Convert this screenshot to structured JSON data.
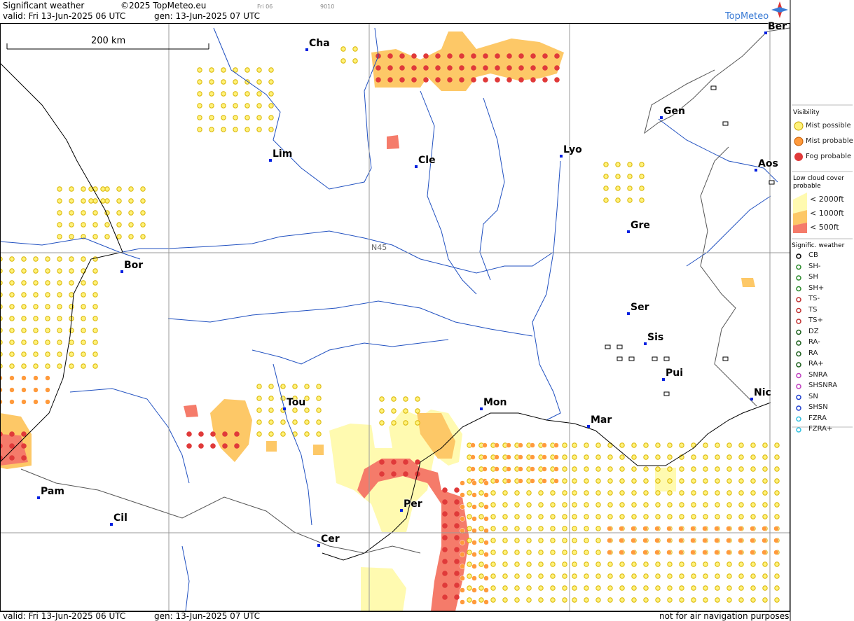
{
  "header": {
    "title": "Significant weather",
    "copyright": "©2025 TopMeteo.eu",
    "run": "Fri 06",
    "code": "9010",
    "valid": "valid:  Fri  13-Jun-2025  06 UTC",
    "gen": "gen: 13-Jun-2025  07 UTC"
  },
  "logo": "TopMeteo",
  "map": {
    "scale": "200 km",
    "latitude_label": "N45",
    "cities": [
      "Cha",
      "Ber",
      "Gen",
      "Lim",
      "Cle",
      "Lyo",
      "Aos",
      "Gre",
      "Bor",
      "Ser",
      "Sis",
      "Pui",
      "Tou",
      "Mon",
      "Mar",
      "Nic",
      "Pam",
      "Per",
      "Cil",
      "Cer"
    ]
  },
  "legend": {
    "visibility": {
      "title": "Visibility",
      "items": [
        "Mist possible",
        "Mist probable",
        "Fog probable"
      ]
    },
    "low_cloud": {
      "title": "Low cloud cover probable",
      "items": [
        "< 2000ft",
        "< 1000ft",
        "<   500ft"
      ]
    },
    "weather": {
      "title": "Signific. weather",
      "items": [
        "CB",
        "SH-",
        "SH",
        "SH+",
        "TS-",
        "TS",
        "TS+",
        "DZ",
        "RA-",
        "RA",
        "RA+",
        "SNRA",
        "SHSNRA",
        "SN",
        "SHSN",
        "FZRA",
        "FZRA+"
      ]
    }
  },
  "footer": {
    "valid": "valid:  Fri  13-Jun-2025  06 UTC",
    "gen": "gen: 13-Jun-2025  07 UTC",
    "note": "not for air navigation purposes"
  }
}
